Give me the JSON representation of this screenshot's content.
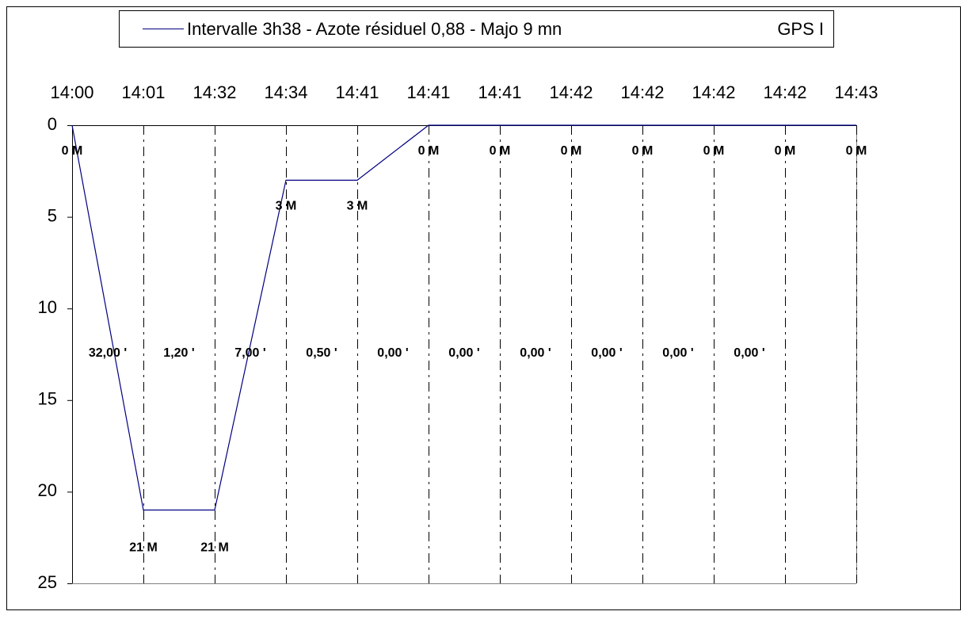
{
  "chart_data": {
    "type": "line",
    "categories": [
      "14:00",
      "14:01",
      "14:32",
      "14:34",
      "14:41",
      "14:41",
      "14:41",
      "14:42",
      "14:42",
      "14:42",
      "14:42",
      "14:43"
    ],
    "series": [
      {
        "name": "Intervalle 3h38 - Azote résiduel 0,88 - Majo 9 mn",
        "color": "#000080",
        "values": [
          0,
          21,
          21,
          3,
          3,
          0,
          0,
          0,
          0,
          0,
          0,
          0
        ],
        "value_labels": [
          "0 M",
          "21 M",
          "21 M",
          "3 M",
          "3 M",
          "0 M",
          "0 M",
          "0 M",
          "0 M",
          "0 M",
          "0 M",
          "0 M"
        ]
      }
    ],
    "segment_labels": [
      "32,00 '",
      "1,20 '",
      "7,00 '",
      "0,50 '",
      "0,00 '",
      "0,00 '",
      "0,00 '",
      "0,00 '",
      "0,00 '",
      "0,00 '"
    ],
    "legend_note": "GPS I",
    "ylim": [
      0,
      25
    ],
    "yticks": [
      0,
      5,
      10,
      15,
      20,
      25
    ],
    "y_inverted": true,
    "grid": true
  }
}
